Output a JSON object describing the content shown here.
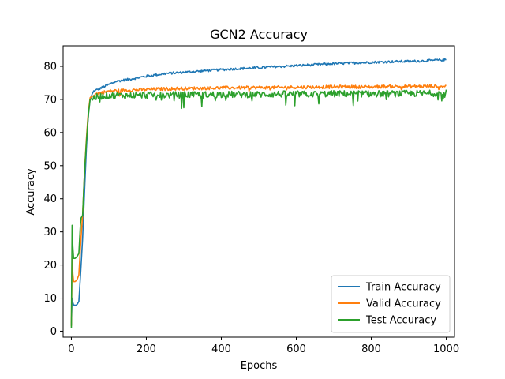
{
  "chart_data": {
    "type": "line",
    "title": "GCN2 Accuracy",
    "xlabel": "Epochs",
    "ylabel": "Accuracy",
    "xlim": [
      -22,
      1022
    ],
    "ylim": [
      -1.8,
      86.2
    ],
    "xticks": [
      0,
      200,
      400,
      600,
      800,
      1000
    ],
    "yticks": [
      0,
      10,
      20,
      30,
      40,
      50,
      60,
      70,
      80
    ],
    "grid": false,
    "legend_position": "lower right",
    "series": [
      {
        "name": "Train Accuracy",
        "color": "#1f77b4",
        "x": [
          0,
          2,
          5,
          10,
          15,
          20,
          25,
          30,
          35,
          40,
          45,
          50,
          55,
          60,
          70,
          80,
          90,
          100,
          120,
          150,
          200,
          250,
          300,
          350,
          400,
          450,
          500,
          550,
          600,
          650,
          700,
          750,
          800,
          850,
          900,
          950,
          1000
        ],
        "y": [
          2,
          10,
          8,
          7.8,
          8,
          9,
          18,
          28,
          42,
          55,
          65,
          70,
          71.5,
          72.5,
          73,
          73.5,
          74,
          74.5,
          75.5,
          76,
          77,
          77.8,
          78.2,
          78.6,
          79,
          79.3,
          79.6,
          79.9,
          80.2,
          80.5,
          80.8,
          81,
          81.2,
          81.4,
          81.5,
          81.7,
          82
        ]
      },
      {
        "name": "Valid Accuracy",
        "color": "#ff7f0e",
        "x": [
          0,
          2,
          5,
          10,
          15,
          20,
          25,
          30,
          35,
          40,
          45,
          50,
          60,
          80,
          100,
          150,
          200,
          250,
          300,
          350,
          400,
          450,
          500,
          550,
          600,
          650,
          700,
          750,
          800,
          850,
          900,
          950,
          1000
        ],
        "y": [
          1.5,
          22,
          15,
          15,
          15.5,
          17,
          27,
          35,
          48,
          58,
          66,
          70.5,
          71.5,
          72,
          72.5,
          72.8,
          73,
          73.2,
          73.3,
          73.4,
          73.5,
          73.5,
          73.6,
          73.6,
          73.7,
          73.7,
          73.8,
          73.8,
          73.8,
          73.9,
          73.9,
          74,
          74
        ]
      },
      {
        "name": "Test Accuracy",
        "color": "#2ca02c",
        "x": [
          0,
          2,
          5,
          10,
          15,
          20,
          25,
          30,
          35,
          40,
          45,
          50,
          60,
          80,
          100,
          150,
          200,
          250,
          300,
          350,
          400,
          450,
          500,
          550,
          600,
          650,
          700,
          750,
          800,
          850,
          900,
          950,
          1000
        ],
        "y": [
          1,
          32,
          22,
          22,
          22.5,
          23.5,
          34,
          35,
          48,
          57,
          65,
          70,
          70.5,
          71,
          71.2,
          71.2,
          71.3,
          71.3,
          71.4,
          71.4,
          71.5,
          71.5,
          71.5,
          71.6,
          71.6,
          71.6,
          71.7,
          71.7,
          71.7,
          71.7,
          71.8,
          71.8,
          72
        ]
      }
    ]
  }
}
